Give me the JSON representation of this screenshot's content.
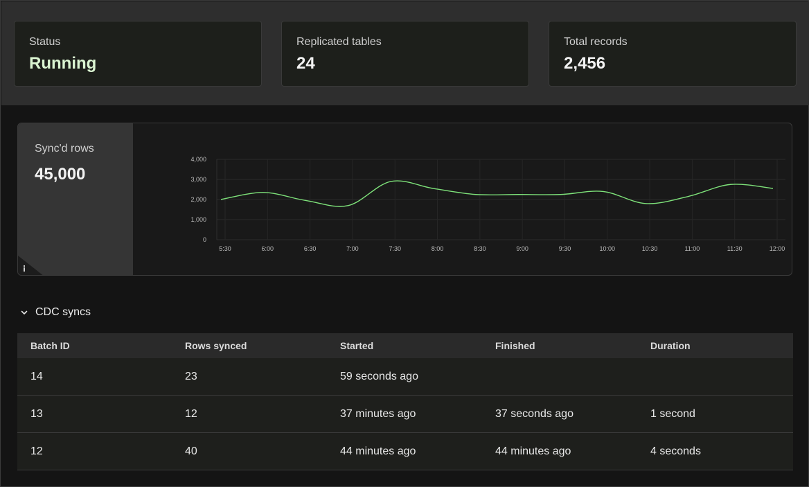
{
  "stats": [
    {
      "label": "Status",
      "value": "Running"
    },
    {
      "label": "Replicated tables",
      "value": "24"
    },
    {
      "label": "Total records",
      "value": "2,456"
    }
  ],
  "chart_panel": {
    "label": "Sync'd rows",
    "value": "45,000",
    "info_icon": "info-icon"
  },
  "chart_data": {
    "type": "line",
    "x": [
      "5:30",
      "6:00",
      "6:30",
      "7:00",
      "7:30",
      "8:00",
      "8:30",
      "9:00",
      "9:30",
      "10:00",
      "10:30",
      "11:00",
      "11:30",
      "12:00"
    ],
    "series": [
      {
        "values": [
          2000,
          2350,
          1950,
          1700,
          2900,
          2550,
          2250,
          2250,
          2250,
          2400,
          1800,
          2150,
          2750,
          2550
        ],
        "color": "#7ee27a"
      }
    ],
    "yticks": [
      "0",
      "1,000",
      "2,000",
      "3,000",
      "4,000"
    ],
    "ylim": [
      0,
      4000
    ],
    "grid": true
  },
  "cdc": {
    "title": "CDC syncs",
    "columns": [
      "Batch ID",
      "Rows synced",
      "Started",
      "Finished",
      "Duration"
    ],
    "rows": [
      [
        "14",
        "23",
        "59 seconds ago",
        "",
        ""
      ],
      [
        "13",
        "12",
        "37 minutes ago",
        "37 seconds ago",
        "1 second"
      ],
      [
        "12",
        "40",
        "44 minutes ago",
        "44 minutes ago",
        "4 seconds"
      ]
    ]
  }
}
